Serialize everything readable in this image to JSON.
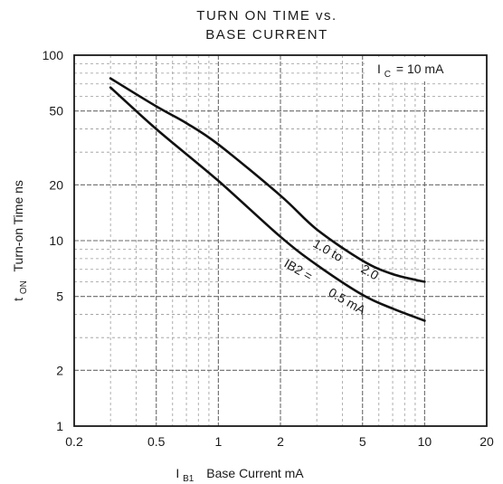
{
  "chart_data": {
    "type": "line",
    "title_line1": "TURN ON TIME vs.",
    "title_line2": "BASE CURRENT",
    "x_axis": {
      "scale": "log",
      "range": [
        0.2,
        20
      ],
      "ticks": [
        "0.2",
        "0.5",
        "1",
        "2",
        "5",
        "10",
        "20"
      ],
      "label_symbol": "I",
      "label_subscript": "B1",
      "label_text": "Base Current mA"
    },
    "y_axis": {
      "scale": "log",
      "range": [
        1,
        100
      ],
      "ticks": [
        "1",
        "2",
        "5",
        "10",
        "20",
        "50",
        "100"
      ],
      "label_symbol": "t",
      "label_subscript": "ON",
      "label_text": "Turn-on Time ns"
    },
    "grid": true,
    "condition": {
      "symbol": "I",
      "subscript": "C",
      "text": "= 10 mA"
    },
    "series": [
      {
        "name": "1.0 to 2.0",
        "x": [
          0.3,
          0.5,
          0.7,
          1.0,
          2.0,
          3.0,
          5.0,
          7.0,
          10.0
        ],
        "y": [
          75,
          53,
          43,
          33,
          17.5,
          11.5,
          7.8,
          6.6,
          6.0
        ]
      },
      {
        "name": "IB2 = 0.5 mA",
        "x": [
          0.3,
          0.5,
          1.0,
          2.0,
          3.0,
          5.0,
          7.0,
          10.0
        ],
        "y": [
          67,
          40,
          21,
          10.5,
          7.4,
          5.1,
          4.3,
          3.7
        ]
      }
    ],
    "curve_labels": {
      "upper_a": "1.0 to",
      "upper_b": "2.0",
      "lower_a": "IB2 =",
      "lower_b": "0.5 mA"
    }
  }
}
